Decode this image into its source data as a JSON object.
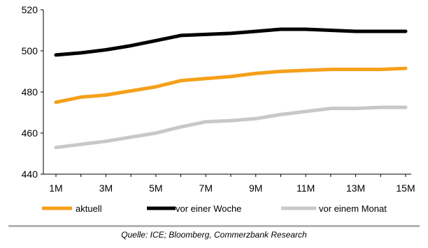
{
  "chart_data": {
    "type": "line",
    "x": [
      "1M",
      "2M",
      "3M",
      "4M",
      "5M",
      "6M",
      "7M",
      "8M",
      "9M",
      "10M",
      "11M",
      "12M",
      "13M",
      "14M",
      "15M"
    ],
    "x_tick_labels": [
      "1M",
      "3M",
      "5M",
      "7M",
      "9M",
      "11M",
      "13M",
      "15M"
    ],
    "y_tick_labels": [
      "440",
      "460",
      "480",
      "500",
      "520"
    ],
    "ylim": [
      440,
      520
    ],
    "grid": false,
    "legend_placement": "bottom",
    "series": [
      {
        "name": "aktuell",
        "color": "#f5a01a",
        "values": [
          475,
          477.5,
          478.5,
          480.5,
          482.5,
          485.5,
          486.5,
          487.5,
          489,
          490,
          490.5,
          491,
          491,
          491,
          491.5
        ]
      },
      {
        "name": "vor einer Woche",
        "color": "#000000",
        "values": [
          498,
          499,
          500.5,
          502.5,
          505,
          507.5,
          508,
          508.5,
          509.5,
          510.5,
          510.5,
          510,
          509.5,
          509.5,
          509.5
        ]
      },
      {
        "name": "vor einem Monat",
        "color": "#c8c8c8",
        "values": [
          453,
          454.5,
          456,
          458,
          460,
          463,
          465.5,
          466,
          467,
          469,
          470.5,
          472,
          472,
          472.5,
          472.5
        ]
      }
    ]
  },
  "source_note": "Quelle: ICE; Bloomberg, Commerzbank Research"
}
